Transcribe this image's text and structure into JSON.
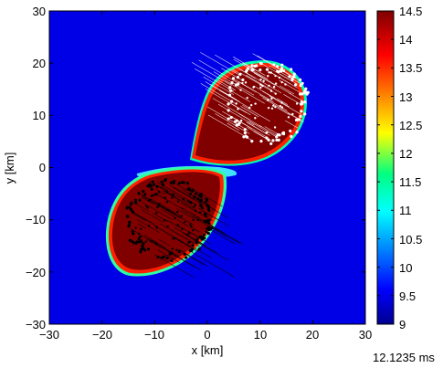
{
  "chart_data": {
    "type": "heatmap",
    "title": "",
    "xlabel": "x [km]",
    "ylabel": "y [km]",
    "xlim": [
      -30,
      30
    ],
    "ylim": [
      -30,
      30
    ],
    "x_ticks": [
      "−30",
      "−20",
      "−10",
      "0",
      "10",
      "20",
      "30"
    ],
    "y_ticks": [
      "30",
      "20",
      "10",
      "0",
      "−10",
      "−20",
      "−30"
    ],
    "colorbar": {
      "min": 9,
      "max": 14.5,
      "ticks": [
        "14.5",
        "14",
        "13.5",
        "13",
        "12.5",
        "12",
        "11.5",
        "11",
        "10.5",
        "10",
        "9.5",
        "9"
      ],
      "colormap": "jet"
    },
    "background_value": 9,
    "objects": [
      {
        "name": "upper",
        "center": [
          12,
          13
        ],
        "core_value": 14.5,
        "particle_color": "#ffffff"
      },
      {
        "name": "lower",
        "center": [
          -7,
          -9
        ],
        "core_value": 14.5,
        "particle_color": "#000000"
      }
    ],
    "grid": false
  },
  "time_text": "12.1235 ms"
}
